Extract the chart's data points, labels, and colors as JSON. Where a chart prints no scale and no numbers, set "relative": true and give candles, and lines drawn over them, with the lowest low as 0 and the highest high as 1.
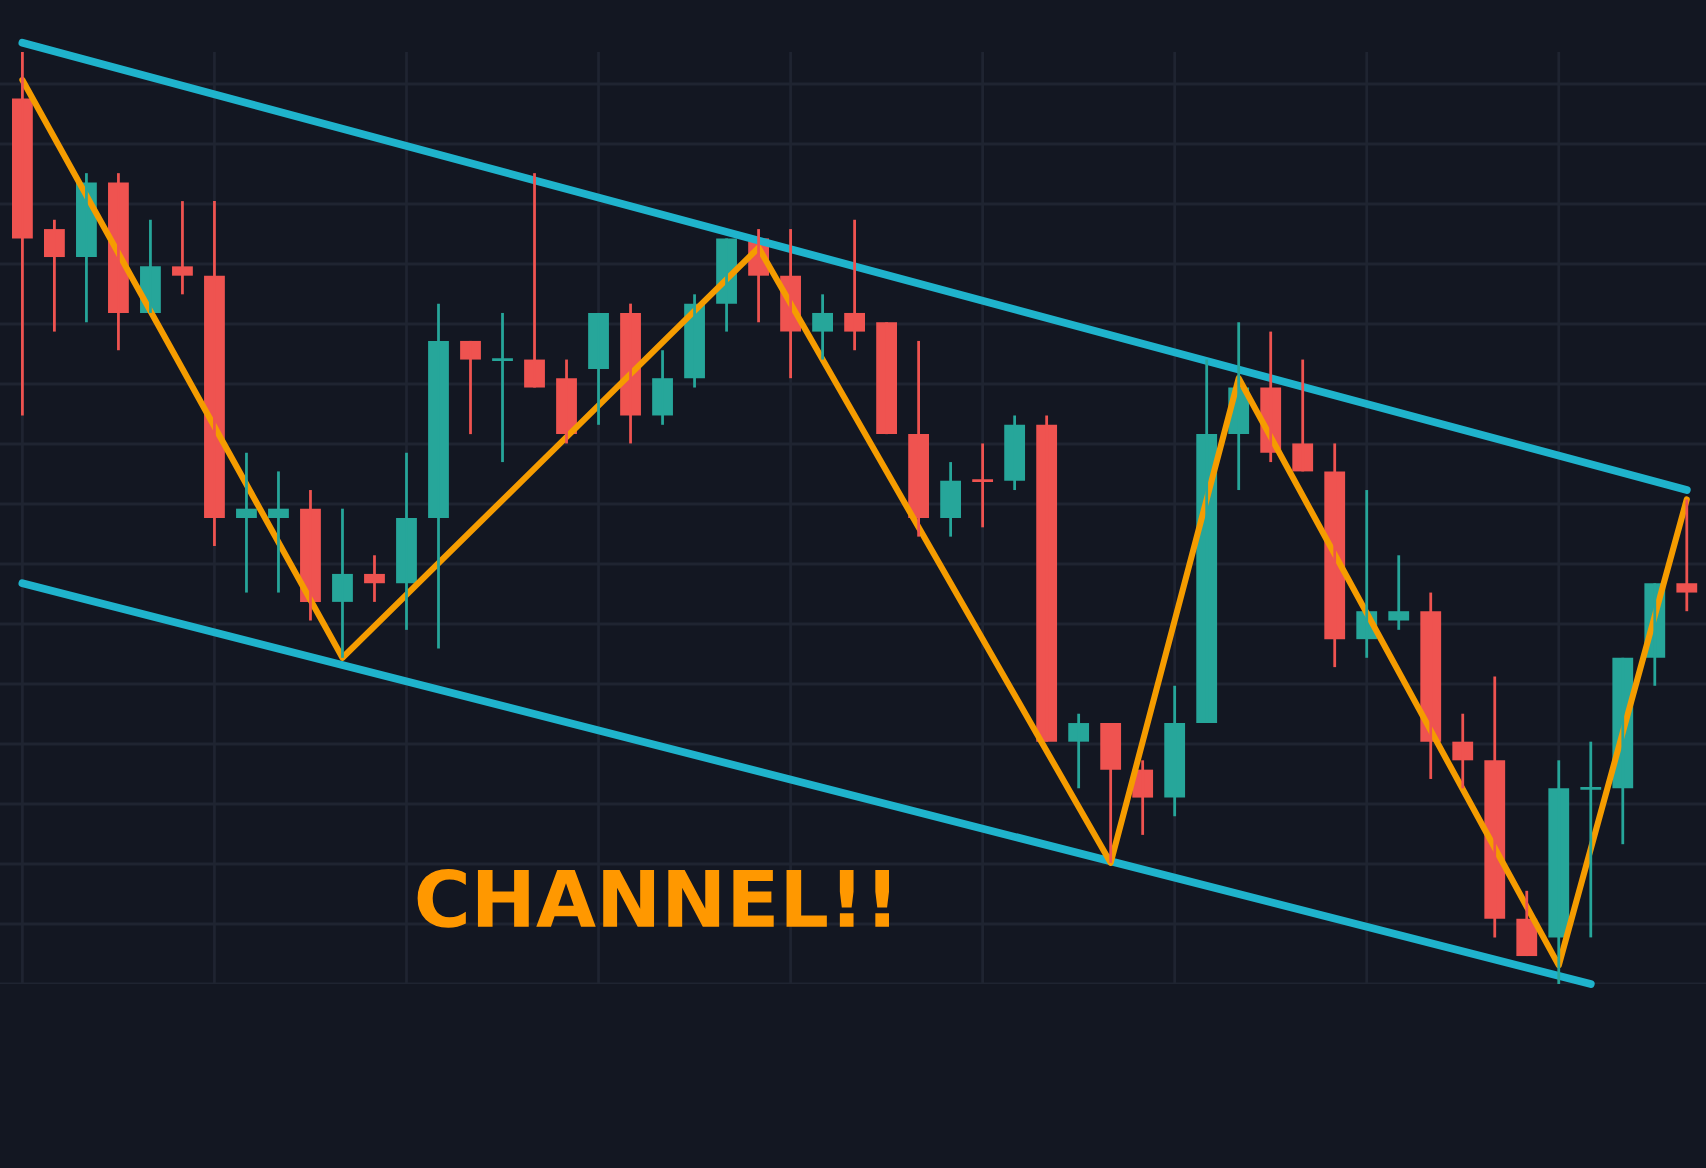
{
  "chart_data": {
    "type": "candlestick",
    "relative": true,
    "grid": true,
    "tick_labels": false,
    "categories": [
      null,
      null,
      null,
      null,
      null,
      null,
      null,
      null,
      null,
      null,
      null,
      null,
      null,
      null,
      null,
      null,
      null,
      null,
      null,
      null,
      null,
      null,
      null,
      null,
      null,
      null,
      null,
      null,
      null,
      null,
      null,
      null,
      null,
      null,
      null,
      null,
      null,
      null,
      null,
      null,
      null,
      null,
      null,
      null,
      null,
      null,
      null,
      null,
      null,
      null,
      null,
      null,
      null
    ],
    "ohlc": [
      [
        0.95,
        1.0,
        0.61,
        0.8
      ],
      [
        0.81,
        0.82,
        0.7,
        0.78
      ],
      [
        0.78,
        0.87,
        0.71,
        0.86
      ],
      [
        0.86,
        0.87,
        0.68,
        0.72
      ],
      [
        0.72,
        0.82,
        0.72,
        0.77
      ],
      [
        0.77,
        0.84,
        0.74,
        0.76
      ],
      [
        0.76,
        0.84,
        0.47,
        0.5
      ],
      [
        0.5,
        0.57,
        0.42,
        0.51
      ],
      [
        0.5,
        0.55,
        0.42,
        0.51
      ],
      [
        0.51,
        0.53,
        0.39,
        0.41
      ],
      [
        0.41,
        0.51,
        0.35,
        0.44
      ],
      [
        0.44,
        0.46,
        0.41,
        0.43
      ],
      [
        0.43,
        0.57,
        0.38,
        0.5
      ],
      [
        0.5,
        0.73,
        0.36,
        0.69
      ],
      [
        0.69,
        0.69,
        0.59,
        0.67
      ],
      [
        0.67,
        0.72,
        0.56,
        0.67
      ],
      [
        0.67,
        0.87,
        0.64,
        0.64
      ],
      [
        0.65,
        0.67,
        0.58,
        0.59
      ],
      [
        0.66,
        0.72,
        0.6,
        0.72
      ],
      [
        0.72,
        0.73,
        0.58,
        0.61
      ],
      [
        0.61,
        0.68,
        0.6,
        0.65
      ],
      [
        0.65,
        0.74,
        0.64,
        0.73
      ],
      [
        0.73,
        0.8,
        0.7,
        0.8
      ],
      [
        0.8,
        0.81,
        0.71,
        0.76
      ],
      [
        0.76,
        0.81,
        0.65,
        0.7
      ],
      [
        0.7,
        0.74,
        0.67,
        0.72
      ],
      [
        0.72,
        0.82,
        0.68,
        0.7
      ],
      [
        0.71,
        0.71,
        0.59,
        0.59
      ],
      [
        0.59,
        0.69,
        0.48,
        0.5
      ],
      [
        0.5,
        0.56,
        0.48,
        0.54
      ],
      [
        0.54,
        0.58,
        0.49,
        0.54
      ],
      [
        0.54,
        0.61,
        0.53,
        0.6
      ],
      [
        0.6,
        0.61,
        0.26,
        0.26
      ],
      [
        0.26,
        0.29,
        0.21,
        0.28
      ],
      [
        0.28,
        0.28,
        0.13,
        0.23
      ],
      [
        0.23,
        0.24,
        0.16,
        0.2
      ],
      [
        0.2,
        0.32,
        0.18,
        0.28
      ],
      [
        0.28,
        0.67,
        0.28,
        0.59
      ],
      [
        0.59,
        0.71,
        0.53,
        0.64
      ],
      [
        0.64,
        0.7,
        0.56,
        0.57
      ],
      [
        0.58,
        0.67,
        0.55,
        0.55
      ],
      [
        0.55,
        0.58,
        0.34,
        0.37
      ],
      [
        0.37,
        0.53,
        0.35,
        0.4
      ],
      [
        0.39,
        0.46,
        0.38,
        0.4
      ],
      [
        0.4,
        0.42,
        0.22,
        0.26
      ],
      [
        0.26,
        0.29,
        0.21,
        0.24
      ],
      [
        0.24,
        0.33,
        0.05,
        0.07
      ],
      [
        0.07,
        0.1,
        0.03,
        0.03
      ],
      [
        0.05,
        0.24,
        0.0,
        0.21
      ],
      [
        0.21,
        0.26,
        0.05,
        0.21
      ],
      [
        0.21,
        0.35,
        0.15,
        0.35
      ],
      [
        0.35,
        0.43,
        0.32,
        0.43
      ],
      [
        0.43,
        0.52,
        0.4,
        0.42
      ]
    ],
    "colors": [
      "#ef5350",
      "#ef5350",
      "#26a69a",
      "#ef5350",
      "#26a69a",
      "#ef5350",
      "#ef5350",
      "#26a69a",
      "#26a69a",
      "#ef5350",
      "#26a69a",
      "#ef5350",
      "#26a69a",
      "#26a69a",
      "#ef5350",
      "#26a69a",
      "#ef5350",
      "#ef5350",
      "#26a69a",
      "#ef5350",
      "#26a69a",
      "#26a69a",
      "#26a69a",
      "#ef5350",
      "#ef5350",
      "#26a69a",
      "#ef5350",
      "#ef5350",
      "#ef5350",
      "#26a69a",
      "#ef5350",
      "#26a69a",
      "#ef5350",
      "#26a69a",
      "#ef5350",
      "#ef5350",
      "#26a69a",
      "#26a69a",
      "#26a69a",
      "#ef5350",
      "#ef5350",
      "#ef5350",
      "#26a69a",
      "#26a69a",
      "#ef5350",
      "#ef5350",
      "#ef5350",
      "#ef5350",
      "#26a69a",
      "#26a69a",
      "#26a69a",
      "#26a69a",
      "#ef5350"
    ],
    "series": [
      {
        "type": "line",
        "color": "#1fb3cc",
        "values": [
          1.01,
          null,
          null,
          null,
          null,
          null,
          null,
          null,
          null,
          null,
          null,
          null,
          null,
          null,
          null,
          null,
          null,
          null,
          null,
          null,
          null,
          null,
          null,
          null,
          null,
          null,
          null,
          null,
          null,
          null,
          null,
          null,
          null,
          null,
          null,
          null,
          null,
          null,
          null,
          null,
          null,
          null,
          null,
          null,
          null,
          null,
          null,
          null,
          null,
          null,
          null,
          null,
          0.53
        ]
      },
      {
        "type": "line",
        "color": "#1fb3cc",
        "values": [
          0.43,
          null,
          null,
          null,
          null,
          null,
          null,
          null,
          null,
          null,
          null,
          null,
          null,
          null,
          null,
          null,
          null,
          null,
          null,
          null,
          null,
          null,
          null,
          null,
          null,
          null,
          null,
          null,
          null,
          null,
          null,
          null,
          null,
          null,
          null,
          null,
          null,
          null,
          null,
          null,
          null,
          null,
          null,
          null,
          null,
          null,
          null,
          null,
          null,
          0.0,
          null,
          null,
          null
        ]
      },
      {
        "type": "line",
        "color": "#f59c00",
        "values": [
          0.97,
          null,
          null,
          null,
          null,
          null,
          null,
          null,
          null,
          null,
          0.35,
          null,
          null,
          null,
          null,
          null,
          null,
          null,
          null,
          null,
          null,
          null,
          null,
          0.79,
          null,
          null,
          null,
          null,
          null,
          null,
          null,
          null,
          null,
          null,
          0.13,
          null,
          null,
          null,
          0.65,
          null,
          null,
          null,
          null,
          null,
          null,
          null,
          null,
          null,
          0.02,
          null,
          null,
          null,
          0.52
        ]
      }
    ],
    "annotations": [
      "CHANNEL!!"
    ]
  }
}
